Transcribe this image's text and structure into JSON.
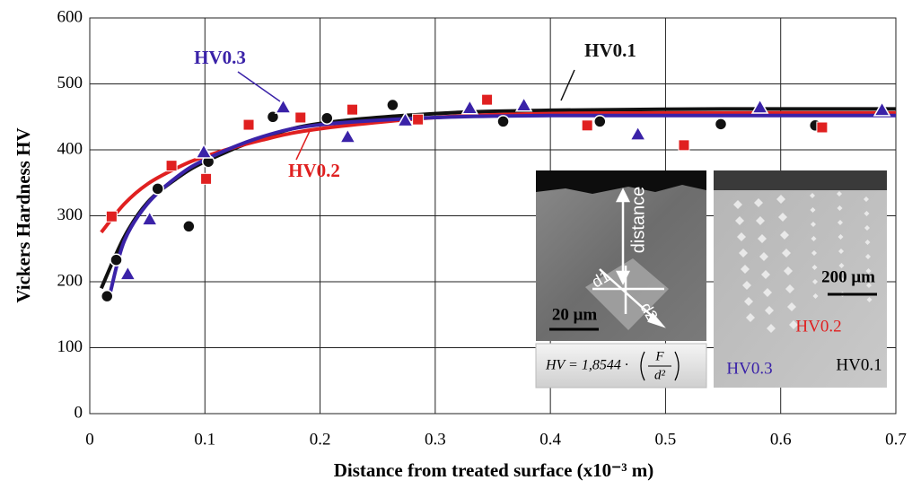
{
  "chart_data": {
    "type": "scatter",
    "x_label": "Distance from treated surface (x10⁻³ m)",
    "y_label": "Vickers Hardness HV",
    "xlim": [
      0,
      0.7
    ],
    "xticks": [
      0,
      0.1,
      0.2,
      0.3,
      0.4,
      0.5,
      0.6,
      0.7
    ],
    "ylim": [
      0,
      600
    ],
    "yticks": [
      0,
      100,
      200,
      300,
      400,
      500,
      600
    ],
    "grid": true,
    "series": [
      {
        "name": "HV0.1",
        "color": "#111111",
        "marker": "circle",
        "x": [
          0.015,
          0.023,
          0.059,
          0.086,
          0.103,
          0.159,
          0.206,
          0.263,
          0.359,
          0.443,
          0.548,
          0.63
        ],
        "values": [
          178,
          233,
          341,
          284,
          382,
          450,
          448,
          468,
          443,
          443,
          439,
          437
        ],
        "fit": {
          "x": [
            0.01,
            0.03,
            0.05,
            0.075,
            0.1,
            0.15,
            0.2,
            0.3,
            0.4,
            0.55,
            0.7
          ],
          "values": [
            190,
            268,
            320,
            356,
            382,
            418,
            440,
            455,
            460,
            462,
            462
          ]
        }
      },
      {
        "name": "HV0.2",
        "color": "#e02020",
        "marker": "square",
        "x": [
          0.019,
          0.071,
          0.101,
          0.138,
          0.183,
          0.228,
          0.285,
          0.345,
          0.432,
          0.516,
          0.636
        ],
        "values": [
          299,
          376,
          356,
          438,
          449,
          461,
          446,
          476,
          437,
          407,
          434
        ],
        "fit": {
          "x": [
            0.01,
            0.03,
            0.05,
            0.075,
            0.1,
            0.15,
            0.2,
            0.3,
            0.4,
            0.55,
            0.7
          ],
          "values": [
            275,
            318,
            348,
            372,
            390,
            415,
            432,
            449,
            455,
            456,
            456
          ]
        }
      },
      {
        "name": "HV0.3",
        "color": "#3a22a8",
        "marker": "triangle",
        "x": [
          0.033,
          0.052,
          0.099,
          0.168,
          0.224,
          0.274,
          0.33,
          0.377,
          0.476,
          0.582,
          0.688
        ],
        "values": [
          211,
          294,
          396,
          464,
          419,
          444,
          463,
          467,
          423,
          464,
          460
        ],
        "fit": {
          "x": [
            0.018,
            0.03,
            0.05,
            0.075,
            0.1,
            0.15,
            0.2,
            0.3,
            0.4,
            0.55,
            0.7
          ],
          "values": [
            185,
            262,
            318,
            358,
            385,
            420,
            438,
            449,
            452,
            452,
            452
          ]
        }
      }
    ]
  },
  "inset": {
    "distance": "distance",
    "d1": "d1",
    "d2": "d2",
    "scale_small": "20 μm",
    "scale_large": "200 μm",
    "formula_lhs": "HV = 1,8544 ·",
    "formula_numerator": "F",
    "formula_denominator": "d²",
    "labels": [
      "HV0.2",
      "HV0.3",
      "HV0.1"
    ]
  }
}
